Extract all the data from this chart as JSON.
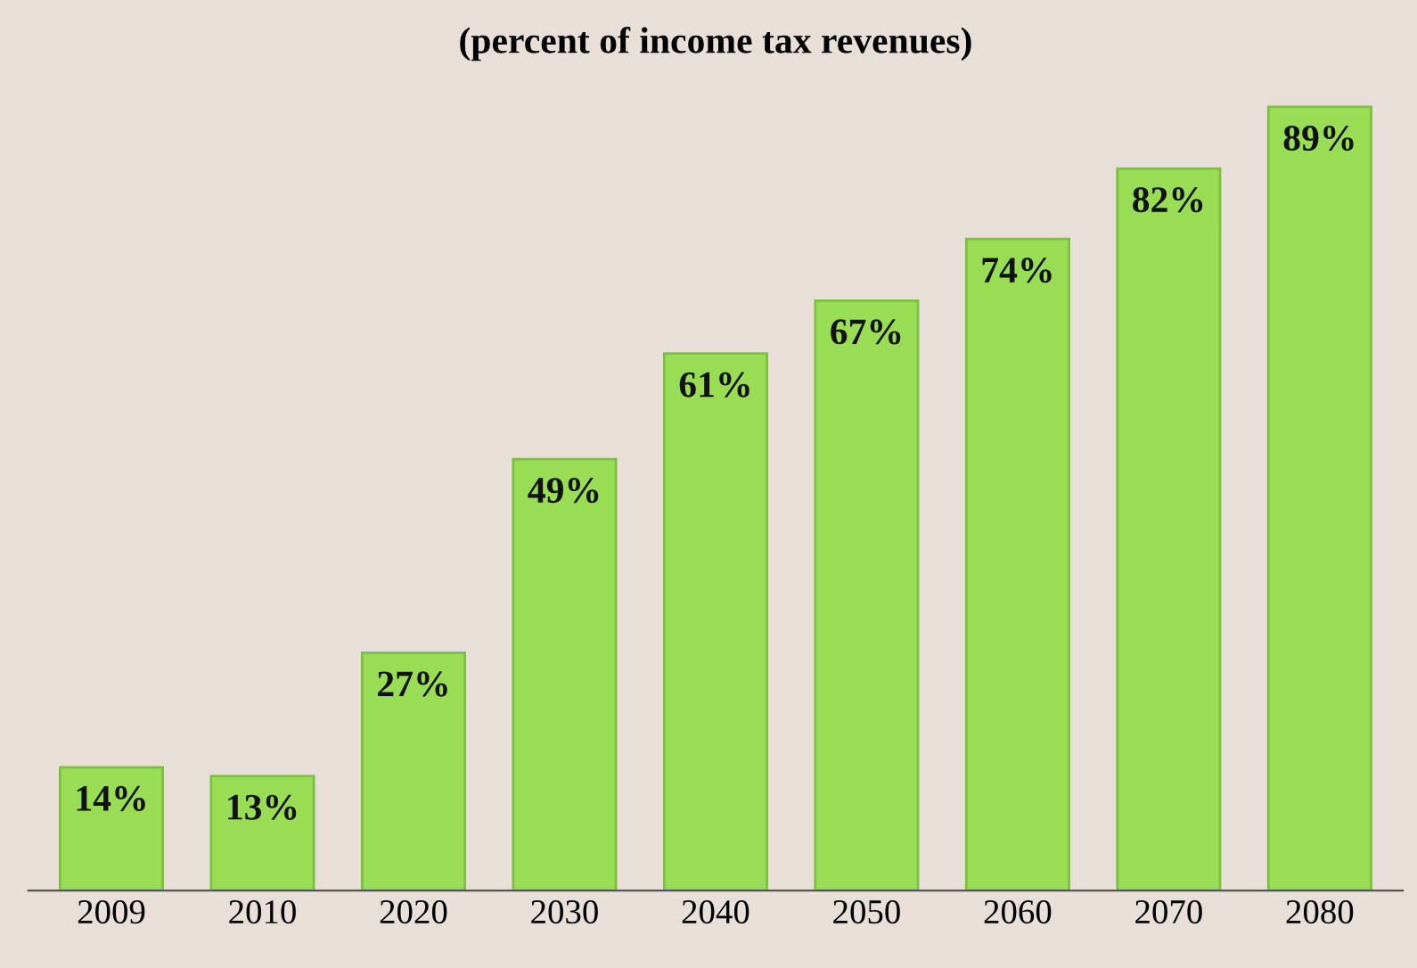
{
  "chart_data": {
    "type": "bar",
    "title": "(percent of income tax revenues)",
    "categories": [
      "2009",
      "2010",
      "2020",
      "2030",
      "2040",
      "2050",
      "2060",
      "2070",
      "2080"
    ],
    "values": [
      14,
      13,
      27,
      49,
      61,
      67,
      74,
      82,
      89
    ],
    "value_labels": [
      "14%",
      "13%",
      "27%",
      "49%",
      "61%",
      "67%",
      "74%",
      "82%",
      "89%"
    ],
    "color": "#99dd55",
    "grid": false,
    "legend": false
  }
}
